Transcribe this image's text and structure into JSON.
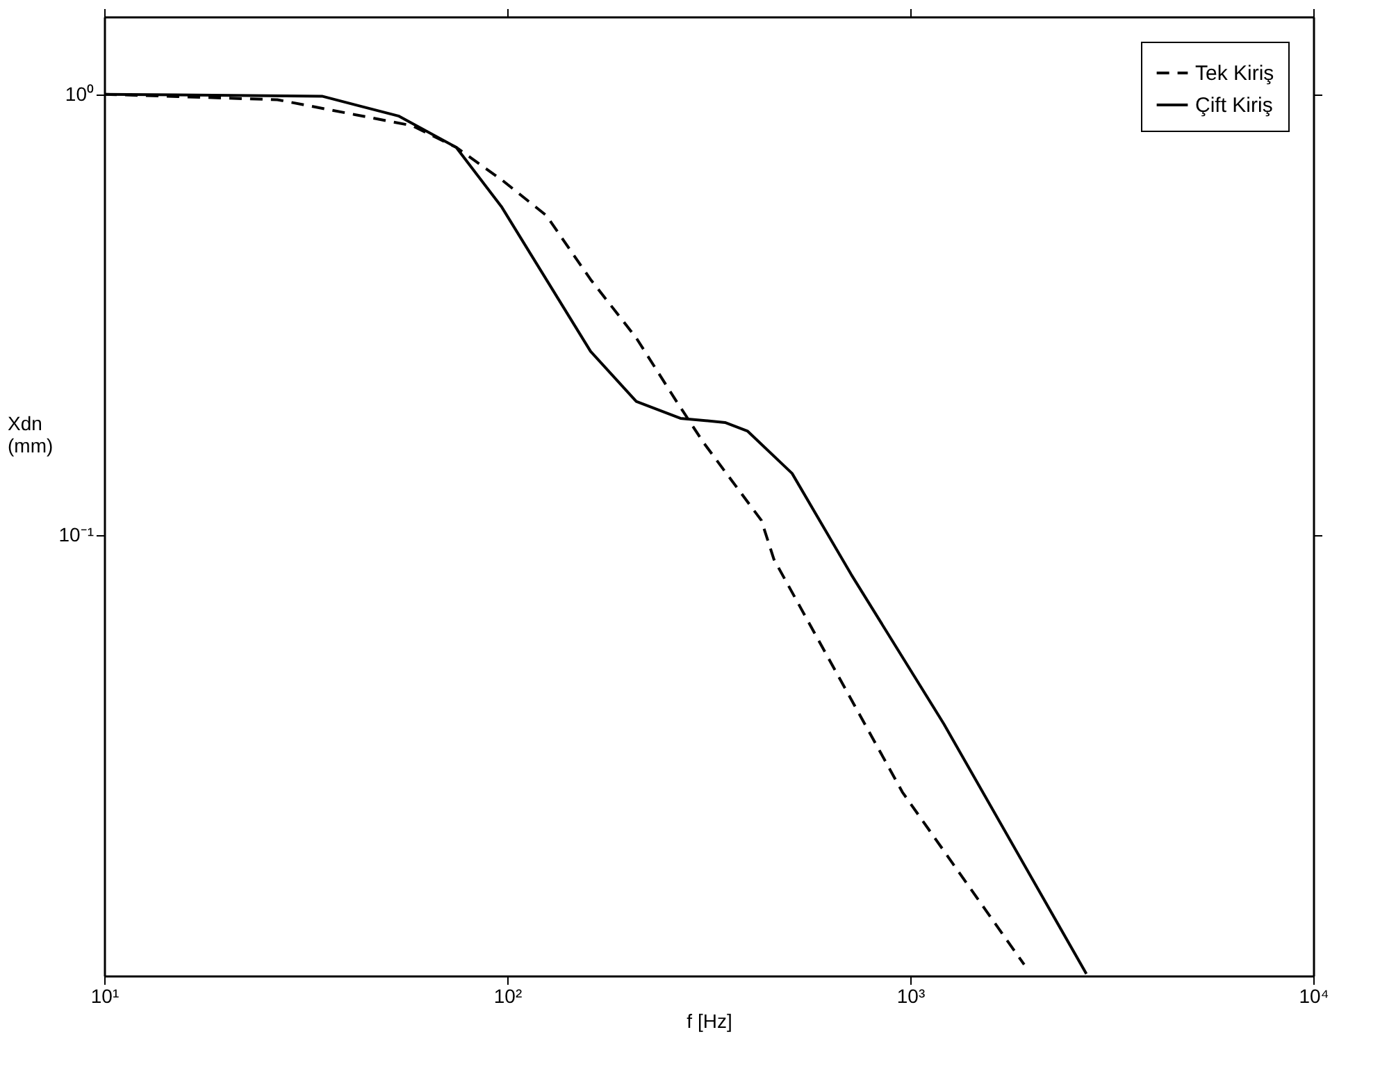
{
  "chart_data": {
    "type": "line",
    "xlabel": "f [Hz]",
    "ylabel": "Xdn (mm)",
    "log": "xy",
    "xlim": [
      10,
      10000
    ],
    "ylim": [
      0.01,
      1.5
    ],
    "xticks": [
      {
        "value": 10,
        "label": "10¹"
      },
      {
        "value": 100,
        "label": "10²"
      },
      {
        "value": 1000,
        "label": "10³"
      },
      {
        "value": 10000,
        "label": "10⁴"
      }
    ],
    "yticks": [
      {
        "value": 0.1,
        "label": "10⁻¹"
      },
      {
        "value": 1,
        "label": "10⁰"
      }
    ],
    "grid": false,
    "legend": "top right",
    "marker": "none",
    "series": [
      {
        "name": "Tek Kiriş",
        "color": "#000000",
        "line_style": "dashed",
        "x": [
          10,
          26.9,
          58,
          74.7,
          97,
          125,
          161,
          209,
          263,
          307,
          427,
          459,
          956,
          1917
        ],
        "values": [
          1,
          0.972,
          0.849,
          0.758,
          0.639,
          0.531,
          0.38,
          0.28,
          0.201,
          0.162,
          0.108,
          0.088,
          0.0261,
          0.0106
        ]
      },
      {
        "name": "Çift Kiriş",
        "color": "#000000",
        "line_style": "solid",
        "x": [
          10,
          34.7,
          53.7,
          74.7,
          97,
          125,
          161,
          209,
          269,
          347,
          395,
          509,
          714,
          1211,
          2735
        ],
        "values": [
          1,
          0.99,
          0.893,
          0.758,
          0.554,
          0.38,
          0.261,
          0.201,
          0.184,
          0.18,
          0.172,
          0.138,
          0.0813,
          0.0373,
          0.0101
        ]
      }
    ]
  }
}
